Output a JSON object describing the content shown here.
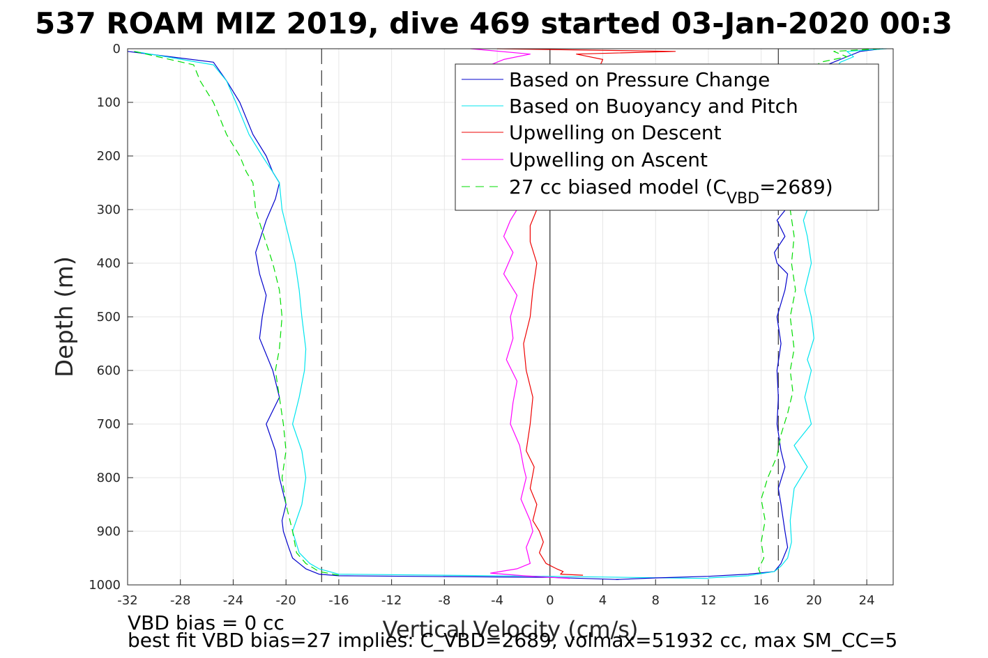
{
  "chart_data": {
    "type": "line",
    "title": "537 ROAM MIZ 2019, dive 469 started 03-Jan-2020 00:3",
    "xlabel": "Vertical Velocity (cm/s)",
    "ylabel": "Depth (m)",
    "xlim": [
      -32,
      26
    ],
    "ylim": [
      0,
      1000
    ],
    "y_reversed": true,
    "grid": true,
    "x_ticks": [
      -32,
      -28,
      -24,
      -20,
      -16,
      -12,
      -8,
      -4,
      0,
      4,
      8,
      12,
      16,
      20,
      24
    ],
    "y_ticks": [
      0,
      100,
      200,
      300,
      400,
      500,
      600,
      700,
      800,
      900,
      1000
    ],
    "x_tick_labels": [
      "-32",
      "-28",
      "-24",
      "-20",
      "-16",
      "-12",
      "-8",
      "-4",
      "0",
      "4",
      "8",
      "12",
      "16",
      "20",
      "24"
    ],
    "y_tick_labels": [
      "0",
      "100",
      "200",
      "300",
      "400",
      "500",
      "600",
      "700",
      "800",
      "900",
      "1000"
    ],
    "reference_lines": {
      "dashed_vertical_x": [
        -17.3,
        17.3
      ],
      "solid_vertical_x": [
        0
      ]
    },
    "legend": {
      "placement": "top-right",
      "entries": [
        {
          "label": "Based on Pressure Change",
          "color": "#0000cc",
          "dash": "solid"
        },
        {
          "label": "Based on Buoyancy and Pitch",
          "color": "#00e5ee",
          "dash": "solid"
        },
        {
          "label": "Upwelling on Descent",
          "color": "#ee0000",
          "dash": "solid"
        },
        {
          "label": "Upwelling on Ascent",
          "color": "#ff00ff",
          "dash": "solid"
        },
        {
          "label_prefix": "27 cc biased model (C",
          "label_sub": "VBD",
          "label_suffix": "=2689)",
          "color": "#00dd00",
          "dash": "dashed"
        }
      ]
    },
    "series": [
      {
        "name": "Based on Pressure Change",
        "color": "#0000cc",
        "dash": "solid",
        "x": [
          -32,
          -25.5,
          -24.5,
          -23.5,
          -22.5,
          -21.5,
          -21,
          -20.5,
          -20.8,
          -21.5,
          -22.3,
          -22,
          -21.5,
          -21.8,
          -22,
          -21,
          -20.5,
          -21.5,
          -20.8,
          -20.5,
          -20,
          -20.3,
          -20.2,
          -19.8,
          -19.5,
          -19,
          -18.5,
          -17.5,
          -16,
          0,
          5.2
        ],
        "y": [
          5,
          25,
          60,
          100,
          160,
          200,
          230,
          250,
          280,
          320,
          380,
          420,
          460,
          500,
          540,
          600,
          650,
          700,
          750,
          800,
          850,
          880,
          900,
          930,
          950,
          960,
          970,
          980,
          983,
          986,
          990
        ]
      },
      {
        "name": "Based on Buoyancy and Pitch",
        "color": "#00e5ee",
        "dash": "solid",
        "x": [
          -31.5,
          -25.5,
          -24.5,
          -23.8,
          -22.8,
          -21.8,
          -21,
          -20.5,
          -20.3,
          -19.8,
          -19.3,
          -19,
          -18.8,
          -18.5,
          -18.6,
          -19,
          -19.5,
          -18.8,
          -18.5,
          -18.8,
          -19.5,
          -19,
          -18.2,
          -17.5,
          -16,
          0,
          12
        ],
        "y": [
          5,
          30,
          60,
          100,
          160,
          200,
          230,
          250,
          300,
          350,
          400,
          450,
          500,
          560,
          600,
          650,
          700,
          750,
          800,
          850,
          900,
          940,
          960,
          970,
          980,
          984,
          988
        ]
      },
      {
        "name": "27 cc biased model (CVBD=2689)",
        "color": "#00dd00",
        "dash": "dashed",
        "x": [
          -31.5,
          -27,
          -26.5,
          -25.5,
          -24.5,
          -23.5,
          -23,
          -22.5,
          -22.3,
          -21.8,
          -21,
          -20.5,
          -20.3,
          -20.5,
          -20.8,
          -20.5,
          -20.2,
          -20,
          -20.3,
          -20,
          -19.5,
          -19.2,
          -18.5,
          -17.5,
          -16
        ],
        "y": [
          5,
          30,
          60,
          100,
          160,
          200,
          230,
          250,
          300,
          340,
          400,
          450,
          500,
          560,
          600,
          650,
          700,
          750,
          800,
          850,
          900,
          940,
          960,
          975,
          982
        ]
      },
      {
        "name": "Based on Pressure Change",
        "color": "#0000cc",
        "dash": "solid",
        "x": [
          25.2,
          23.5,
          22.5,
          21,
          18.5,
          17.2,
          17.8,
          17,
          17.2,
          18,
          17.8,
          17.2,
          17.5,
          17.2,
          17.3,
          17.2,
          17.5,
          17.8,
          17.3,
          17.5,
          17.8,
          18,
          17.5,
          17,
          15,
          12,
          8,
          5
        ],
        "y": [
          0,
          5,
          15,
          30,
          280,
          320,
          350,
          380,
          400,
          420,
          450,
          500,
          550,
          600,
          650,
          700,
          750,
          780,
          820,
          850,
          900,
          930,
          960,
          975,
          980,
          984,
          987,
          990
        ]
      },
      {
        "name": "Based on Buoyancy and Pitch",
        "color": "#00e5ee",
        "dash": "solid",
        "x": [
          25.5,
          22.5,
          23,
          22,
          20.8,
          19.8,
          19.2,
          19.5,
          19.8,
          19.3,
          19.8,
          20,
          19.5,
          19.8,
          19.3,
          19.8,
          18.5,
          19.5,
          18.5,
          18.2,
          18.3,
          18,
          17.5,
          17,
          15,
          12
        ],
        "y": [
          0,
          5,
          15,
          25,
          60,
          280,
          320,
          350,
          400,
          450,
          500,
          540,
          580,
          600,
          650,
          700,
          740,
          780,
          820,
          880,
          920,
          950,
          965,
          975,
          983,
          987
        ]
      },
      {
        "name": "27 cc biased model (CVBD=2689)",
        "color": "#00dd00",
        "dash": "dashed",
        "x": [
          25,
          21.5,
          22.5,
          20.5,
          18.7,
          18.2,
          18.5,
          18.3,
          18.6,
          18.2,
          18.5,
          18.2,
          18.4,
          18,
          17.5,
          17.2,
          16.5,
          16,
          16.3,
          16,
          16.2,
          15.8,
          16
        ],
        "y": [
          0,
          5,
          15,
          25,
          60,
          300,
          350,
          400,
          450,
          500,
          560,
          600,
          640,
          680,
          720,
          760,
          800,
          840,
          880,
          920,
          950,
          970,
          982
        ]
      },
      {
        "name": "Upwelling on Descent",
        "color": "#ee0000",
        "dash": "solid",
        "x": [
          -4,
          9.5,
          2,
          4,
          -1,
          -1.5,
          -1.5,
          -1,
          -1.3,
          -1.5,
          -2,
          -1.8,
          -1.3,
          -1.5,
          -1.8,
          -1.2,
          -1.5,
          -1,
          -1.3,
          -0.8,
          -0.5,
          -0.8,
          -0.3,
          0.5,
          1,
          0.8,
          2.5
        ],
        "y": [
          0,
          5,
          10,
          20,
          300,
          330,
          360,
          400,
          450,
          500,
          550,
          600,
          650,
          700,
          750,
          780,
          820,
          850,
          880,
          900,
          920,
          940,
          960,
          970,
          975,
          980,
          982
        ]
      },
      {
        "name": "Upwelling on Ascent",
        "color": "#ff00ff",
        "dash": "solid",
        "x": [
          -6,
          -1.5,
          -3.5,
          -4.5,
          -2.5,
          -3,
          -3.5,
          -2.8,
          -3.5,
          -2.5,
          -3,
          -2.8,
          -3.3,
          -2.5,
          -2.8,
          -3,
          -2.3,
          -2,
          -1.8,
          -2.2,
          -1.5,
          -1.3,
          -1.8,
          -1.5,
          -2.5,
          -4.5,
          -2,
          1.5
        ],
        "y": [
          0,
          10,
          20,
          30,
          300,
          320,
          350,
          380,
          420,
          460,
          500,
          540,
          580,
          620,
          660,
          700,
          740,
          780,
          800,
          840,
          880,
          900,
          930,
          960,
          970,
          978,
          983,
          988
        ]
      }
    ],
    "annotations": [
      "VBD bias = 0 cc",
      "best fit VBD bias=27 implies: C_VBD=2689, volmax=51932 cc, max SM_CC=5"
    ]
  }
}
